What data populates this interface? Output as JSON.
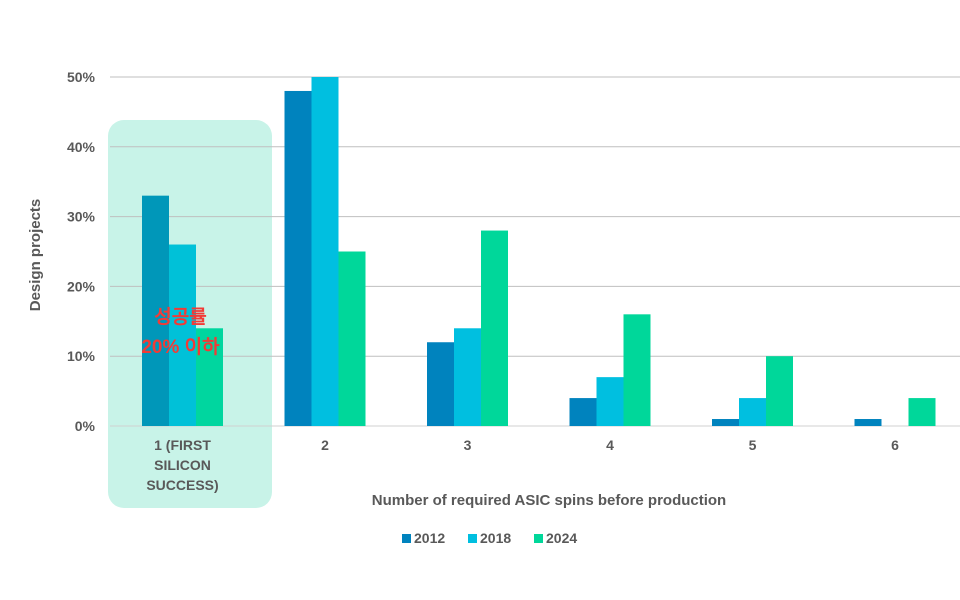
{
  "chart_data": {
    "type": "bar",
    "title": "",
    "xlabel": "Number of required ASIC spins before production",
    "ylabel": "Design projects",
    "ylim": [
      0,
      50
    ],
    "yticks": [
      "0%",
      "10%",
      "20%",
      "30%",
      "40%",
      "50%"
    ],
    "ytick_values": [
      0,
      10,
      20,
      30,
      40,
      50
    ],
    "categories": [
      [
        "1 (FIRST",
        "SILICON",
        "SUCCESS)"
      ],
      [
        "2"
      ],
      [
        "3"
      ],
      [
        "4"
      ],
      [
        "5"
      ],
      [
        "6"
      ]
    ],
    "series": [
      {
        "name": "2012",
        "color": "#0083BE",
        "values": [
          33,
          48,
          12,
          4,
          1,
          1
        ]
      },
      {
        "name": "2018",
        "color": "#00BFE0",
        "values": [
          26,
          50,
          14,
          7,
          4,
          0
        ]
      },
      {
        "name": "2024",
        "color": "#00D79A",
        "values": [
          14,
          25,
          28,
          16,
          10,
          4
        ]
      }
    ],
    "highlight": {
      "category_index": 0,
      "color": "#C8F3E8",
      "annotation": [
        "성공률",
        "20% 이하"
      ]
    },
    "grid": true,
    "legend_position": "bottom"
  }
}
